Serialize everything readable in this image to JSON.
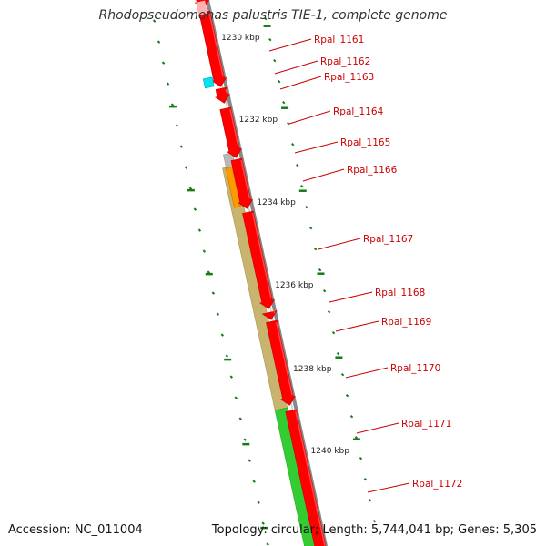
{
  "title": "Rhodopseudomonas palustris TIE-1, complete genome",
  "footer": {
    "accession": "Accession: NC_011004",
    "summary": "Topology: circular; Length: 5,744,041 bp; Genes: 5,305"
  },
  "colors": {
    "backbone": "#888888",
    "tick": "#1a7a1a",
    "cds": "#ff0000",
    "cds_edge": "#cc0000",
    "trna": "#00e5ee",
    "label": "#cc0000",
    "tan_track": "#c8b46e",
    "orange_feature": "#ff9900",
    "gray_feature": "#b8b8b8",
    "green_track": "#33cc33"
  },
  "scale_labels": [
    "1230 kbp",
    "1232 kbp",
    "1234 kbp",
    "1236 kbp",
    "1238 kbp",
    "1240 kbp"
  ],
  "genes": [
    {
      "label": "Rpal_1161"
    },
    {
      "label": "Rpal_1162"
    },
    {
      "label": "Rpal_1163"
    },
    {
      "label": "Rpal_1164"
    },
    {
      "label": "Rpal_1165"
    },
    {
      "label": "Rpal_1166"
    },
    {
      "label": "Rpal_1167"
    },
    {
      "label": "Rpal_1168"
    },
    {
      "label": "Rpal_1169"
    },
    {
      "label": "Rpal_1170"
    },
    {
      "label": "Rpal_1171"
    },
    {
      "label": "Rpal_1172"
    }
  ]
}
